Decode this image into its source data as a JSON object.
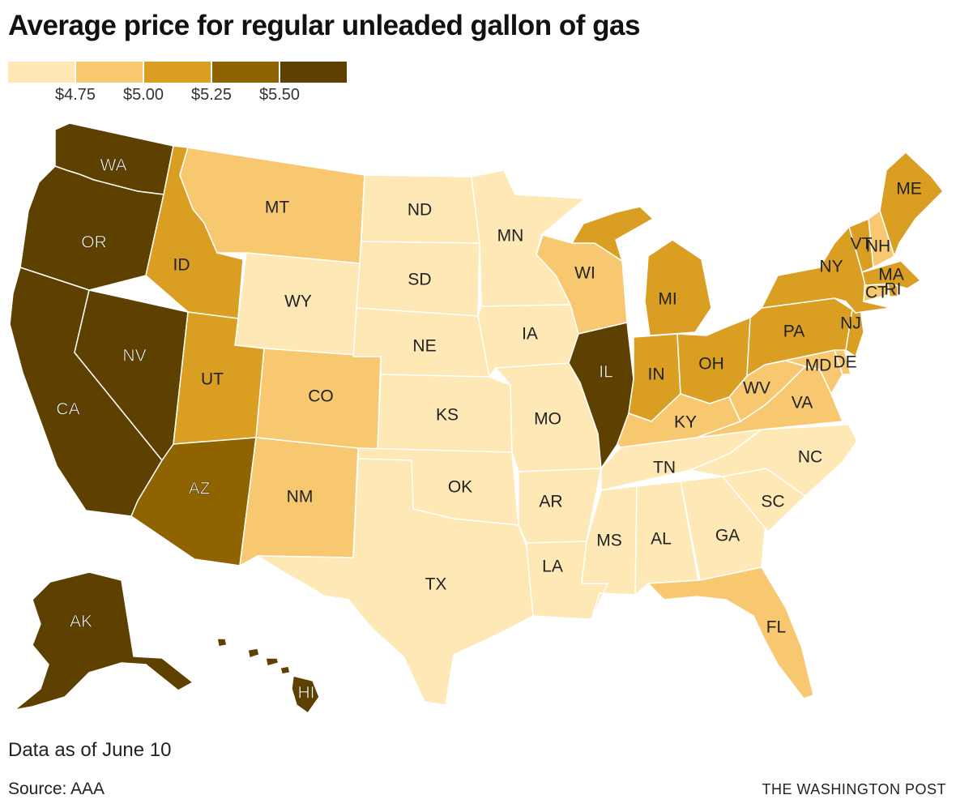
{
  "title": "Average price for regular unleaded gallon of gas",
  "legend": {
    "colors": [
      "#fde8b6",
      "#f7c870",
      "#d99e22",
      "#8f6300",
      "#5e4100"
    ],
    "ticks": [
      "$4.75",
      "$5.00",
      "$5.25",
      "$5.50"
    ]
  },
  "states": [
    {
      "abbr": "WA",
      "bin": 4
    },
    {
      "abbr": "OR",
      "bin": 4
    },
    {
      "abbr": "CA",
      "bin": 4
    },
    {
      "abbr": "NV",
      "bin": 4
    },
    {
      "abbr": "ID",
      "bin": 2
    },
    {
      "abbr": "MT",
      "bin": 1
    },
    {
      "abbr": "WY",
      "bin": 0
    },
    {
      "abbr": "UT",
      "bin": 2
    },
    {
      "abbr": "AZ",
      "bin": 3
    },
    {
      "abbr": "CO",
      "bin": 1
    },
    {
      "abbr": "NM",
      "bin": 1
    },
    {
      "abbr": "ND",
      "bin": 0
    },
    {
      "abbr": "SD",
      "bin": 0
    },
    {
      "abbr": "NE",
      "bin": 0
    },
    {
      "abbr": "KS",
      "bin": 0
    },
    {
      "abbr": "OK",
      "bin": 0
    },
    {
      "abbr": "TX",
      "bin": 0
    },
    {
      "abbr": "MN",
      "bin": 0
    },
    {
      "abbr": "IA",
      "bin": 0
    },
    {
      "abbr": "MO",
      "bin": 0
    },
    {
      "abbr": "AR",
      "bin": 0
    },
    {
      "abbr": "LA",
      "bin": 0
    },
    {
      "abbr": "WI",
      "bin": 1
    },
    {
      "abbr": "IL",
      "bin": 4
    },
    {
      "abbr": "MI",
      "bin": 2
    },
    {
      "abbr": "IN",
      "bin": 2
    },
    {
      "abbr": "OH",
      "bin": 2
    },
    {
      "abbr": "KY",
      "bin": 1
    },
    {
      "abbr": "TN",
      "bin": 0
    },
    {
      "abbr": "MS",
      "bin": 0
    },
    {
      "abbr": "AL",
      "bin": 0
    },
    {
      "abbr": "GA",
      "bin": 0
    },
    {
      "abbr": "FL",
      "bin": 1
    },
    {
      "abbr": "SC",
      "bin": 0
    },
    {
      "abbr": "NC",
      "bin": 0
    },
    {
      "abbr": "VA",
      "bin": 1
    },
    {
      "abbr": "WV",
      "bin": 1
    },
    {
      "abbr": "MD",
      "bin": 1
    },
    {
      "abbr": "DE",
      "bin": 1
    },
    {
      "abbr": "PA",
      "bin": 2
    },
    {
      "abbr": "NJ",
      "bin": 2
    },
    {
      "abbr": "NY",
      "bin": 2
    },
    {
      "abbr": "CT",
      "bin": 1
    },
    {
      "abbr": "RI",
      "bin": 2
    },
    {
      "abbr": "MA",
      "bin": 2
    },
    {
      "abbr": "VT",
      "bin": 2
    },
    {
      "abbr": "NH",
      "bin": 1
    },
    {
      "abbr": "ME",
      "bin": 2
    },
    {
      "abbr": "AK",
      "bin": 4
    },
    {
      "abbr": "HI",
      "bin": 4
    }
  ],
  "note": "Data as of June 10",
  "source": "Source: AAA",
  "credit": "THE WASHINGTON POST"
}
